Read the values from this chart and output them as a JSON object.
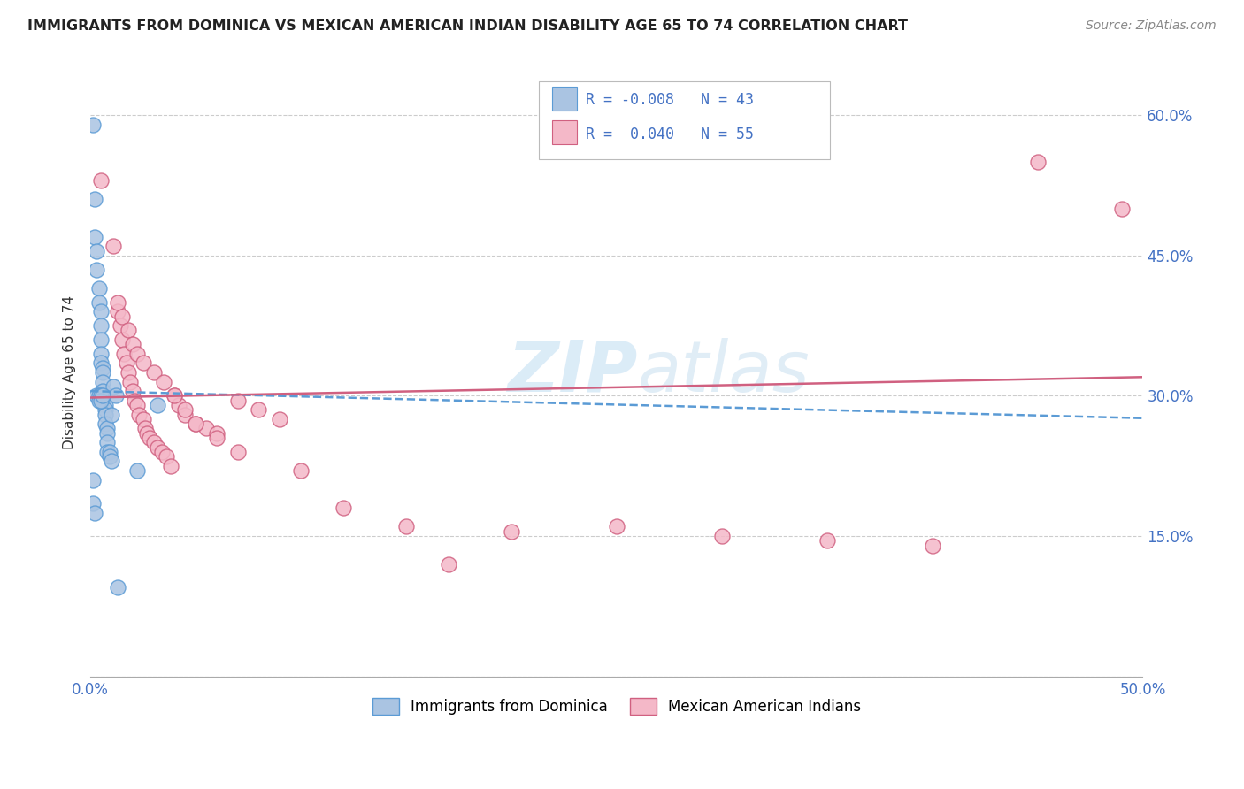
{
  "title": "IMMIGRANTS FROM DOMINICA VS MEXICAN AMERICAN INDIAN DISABILITY AGE 65 TO 74 CORRELATION CHART",
  "source": "Source: ZipAtlas.com",
  "ylabel": "Disability Age 65 to 74",
  "xlim": [
    0.0,
    0.5
  ],
  "ylim": [
    0.0,
    0.65
  ],
  "blue_color": "#aac4e2",
  "blue_edge": "#5b9bd5",
  "pink_color": "#f4b8c8",
  "pink_edge": "#d06080",
  "trend_blue_color": "#5b9bd5",
  "trend_pink_color": "#d06080",
  "watermark": "ZIPatlas",
  "blue_scatter_x": [
    0.001,
    0.002,
    0.002,
    0.003,
    0.003,
    0.004,
    0.004,
    0.005,
    0.005,
    0.005,
    0.005,
    0.005,
    0.006,
    0.006,
    0.006,
    0.006,
    0.006,
    0.007,
    0.007,
    0.007,
    0.007,
    0.008,
    0.008,
    0.008,
    0.008,
    0.009,
    0.009,
    0.01,
    0.01,
    0.011,
    0.012,
    0.013,
    0.001,
    0.001,
    0.002,
    0.003,
    0.004,
    0.004,
    0.005,
    0.005,
    0.006,
    0.022,
    0.032
  ],
  "blue_scatter_y": [
    0.59,
    0.51,
    0.47,
    0.455,
    0.435,
    0.415,
    0.4,
    0.39,
    0.375,
    0.36,
    0.345,
    0.335,
    0.33,
    0.325,
    0.315,
    0.305,
    0.295,
    0.29,
    0.285,
    0.28,
    0.27,
    0.265,
    0.26,
    0.25,
    0.24,
    0.24,
    0.235,
    0.23,
    0.28,
    0.31,
    0.3,
    0.095,
    0.21,
    0.185,
    0.175,
    0.3,
    0.3,
    0.295,
    0.3,
    0.295,
    0.3,
    0.22,
    0.29
  ],
  "pink_scatter_x": [
    0.005,
    0.011,
    0.013,
    0.014,
    0.015,
    0.016,
    0.017,
    0.018,
    0.019,
    0.02,
    0.021,
    0.022,
    0.023,
    0.025,
    0.026,
    0.027,
    0.028,
    0.03,
    0.032,
    0.034,
    0.036,
    0.038,
    0.04,
    0.042,
    0.045,
    0.05,
    0.055,
    0.06,
    0.07,
    0.08,
    0.09,
    0.1,
    0.12,
    0.15,
    0.17,
    0.2,
    0.25,
    0.3,
    0.35,
    0.4,
    0.45,
    0.49,
    0.013,
    0.015,
    0.018,
    0.02,
    0.022,
    0.025,
    0.03,
    0.035,
    0.04,
    0.045,
    0.05,
    0.06,
    0.07
  ],
  "pink_scatter_y": [
    0.53,
    0.46,
    0.39,
    0.375,
    0.36,
    0.345,
    0.335,
    0.325,
    0.315,
    0.305,
    0.295,
    0.29,
    0.28,
    0.275,
    0.265,
    0.26,
    0.255,
    0.25,
    0.245,
    0.24,
    0.235,
    0.225,
    0.3,
    0.29,
    0.28,
    0.27,
    0.265,
    0.26,
    0.295,
    0.285,
    0.275,
    0.22,
    0.18,
    0.16,
    0.12,
    0.155,
    0.16,
    0.15,
    0.145,
    0.14,
    0.55,
    0.5,
    0.4,
    0.385,
    0.37,
    0.355,
    0.345,
    0.335,
    0.325,
    0.315,
    0.3,
    0.285,
    0.27,
    0.255,
    0.24
  ],
  "blue_trend_x0": 0.0,
  "blue_trend_x1": 0.5,
  "blue_trend_y0": 0.305,
  "blue_trend_y1": 0.276,
  "pink_trend_x0": 0.0,
  "pink_trend_x1": 0.5,
  "pink_trend_y0": 0.298,
  "pink_trend_y1": 0.32
}
